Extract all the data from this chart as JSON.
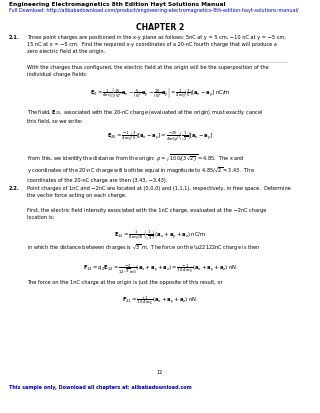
{
  "bg_color": "#ffffff",
  "header_text": "Engineering Electromagnetics 8th Edition Hayt Solutions Manual",
  "header_url": "Full Download: http://alibabadownload.com/product/engineering-electromagnetics-8th-edition-hayt-solutions-manual/",
  "chapter_title": "CHAPTER 2",
  "footer_page": "12",
  "footer_sample": "This sample only, Download all chapters at: alibabadownload.com",
  "header_color": "#000000",
  "url_color": "#0000cc",
  "footer_color": "#0000cc",
  "body_color": "#000000",
  "fig_w": 3.2,
  "fig_h": 4.14,
  "dpi": 100,
  "lm": 0.028,
  "fs_header": 4.2,
  "fs_url": 3.5,
  "fs_chapter": 5.5,
  "fs_body": 3.6,
  "fs_formula": 3.8
}
